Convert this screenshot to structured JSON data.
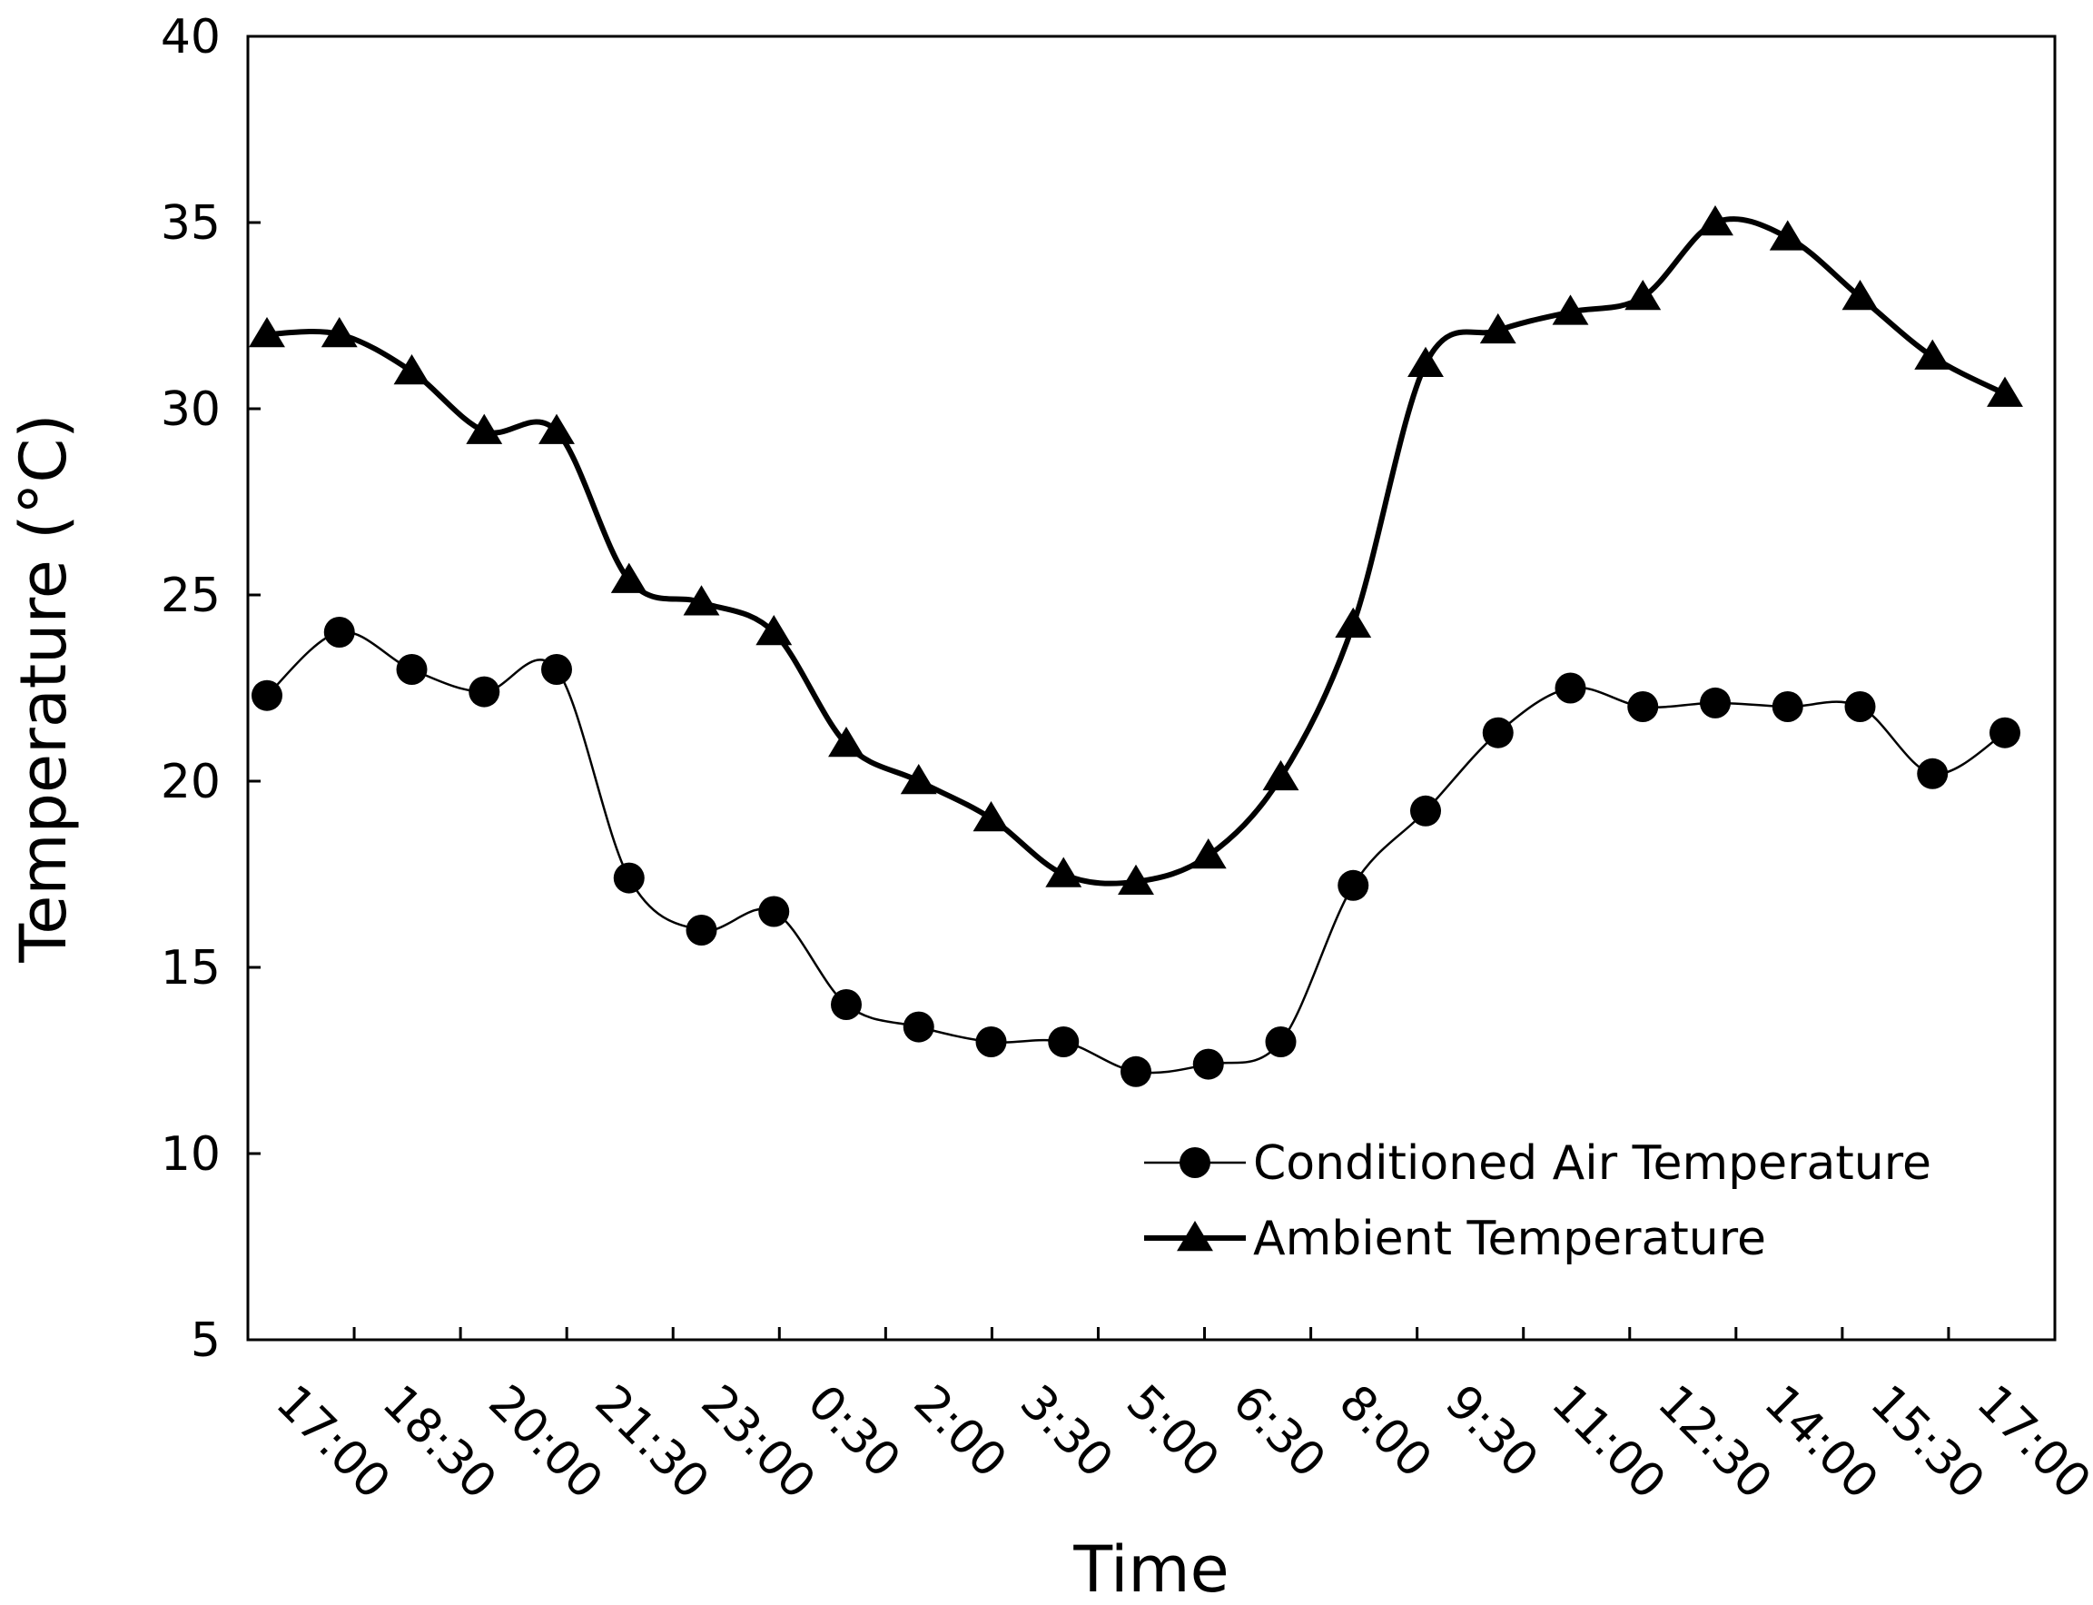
{
  "chart_data": {
    "type": "line",
    "title": "",
    "xlabel": "Time",
    "ylabel": "Temperature (°C)",
    "ylim": [
      5,
      40
    ],
    "yticks": [
      5,
      10,
      15,
      20,
      25,
      30,
      35,
      40
    ],
    "categories": [
      "17:00",
      "18:30",
      "20:00",
      "21:30",
      "23:00",
      "0:30",
      "2:00",
      "3:30",
      "5:00",
      "6:30",
      "8:00",
      "9:30",
      "11:00",
      "12:30",
      "14:00",
      "15:30",
      "17:00"
    ],
    "x": [
      0,
      1,
      2,
      3,
      4,
      5,
      6,
      7,
      8,
      9,
      10,
      11,
      12,
      13,
      14,
      15,
      16,
      17,
      18,
      19,
      20,
      21,
      22,
      23,
      24
    ],
    "legend_position": "bottom-right",
    "series": [
      {
        "name": "Conditioned Air Temperature",
        "marker": "circle",
        "values": [
          22.3,
          24.0,
          23.0,
          22.4,
          23.0,
          17.4,
          16.0,
          16.5,
          14.0,
          13.4,
          13.0,
          13.0,
          12.2,
          12.4,
          13.0,
          17.2,
          19.2,
          21.3,
          22.5,
          22.0,
          22.1,
          22.0,
          22.0,
          20.2,
          21.3
        ]
      },
      {
        "name": "Ambient Temperature",
        "marker": "triangle",
        "values": [
          32.0,
          32.0,
          31.0,
          29.4,
          29.4,
          25.4,
          24.8,
          24.0,
          21.0,
          20.0,
          19.0,
          17.5,
          17.3,
          18.0,
          20.1,
          24.2,
          31.2,
          32.1,
          32.6,
          33.0,
          35.0,
          34.6,
          33.0,
          31.4,
          30.4
        ]
      }
    ]
  }
}
